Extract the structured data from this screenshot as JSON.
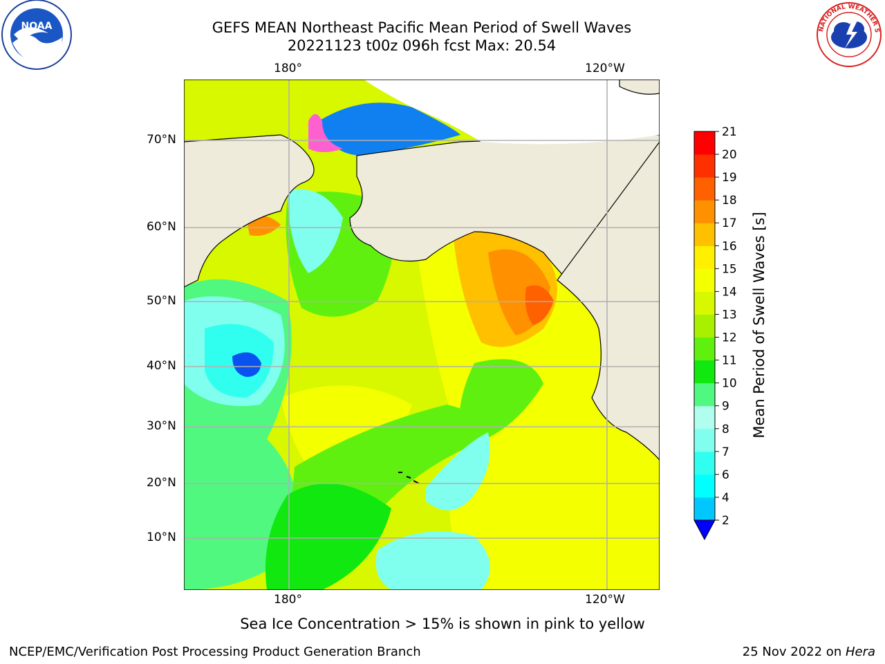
{
  "header": {
    "title_line1": "GEFS MEAN Northeast Pacific Mean Period of Swell Waves",
    "title_line2": "20221123 t00z 096h fcst   Max: 20.54"
  },
  "map": {
    "lon_labels": [
      "180°",
      "120°W"
    ],
    "lat_labels": [
      "70°N",
      "60°N",
      "50°N",
      "40°N",
      "30°N",
      "20°N",
      "10°N"
    ],
    "land_color": "#efebdb",
    "grid_color": "#b0b0b0"
  },
  "colorbar": {
    "title": "Mean Period of Swell Waves [s]",
    "ticks": [
      "2",
      "4",
      "6",
      "7",
      "8",
      "9",
      "10",
      "11",
      "12",
      "13",
      "14",
      "15",
      "16",
      "17",
      "18",
      "19",
      "20",
      "21"
    ],
    "colors": [
      "#0a52f0",
      "#00c8ff",
      "#00ffff",
      "#30ffef",
      "#80ffef",
      "#b0ffee",
      "#50f880",
      "#10e810",
      "#60f010",
      "#a8f000",
      "#d8f800",
      "#f4ff00",
      "#fff000",
      "#ffc000",
      "#ff9000",
      "#ff6000",
      "#ff3000",
      "#ff0000"
    ],
    "under_color": "#0000ff"
  },
  "caption": "Sea Ice Concentration > 15% is shown in pink to yellow",
  "footer": {
    "left": "NCEP/EMC/Verification Post Processing Product Generation Branch",
    "date": "25 Nov 2022 on ",
    "machine": "Hera"
  },
  "logos": {
    "noaa_text": "NOAA",
    "nws_text": "NATIONAL WEATHER SERVICE"
  }
}
